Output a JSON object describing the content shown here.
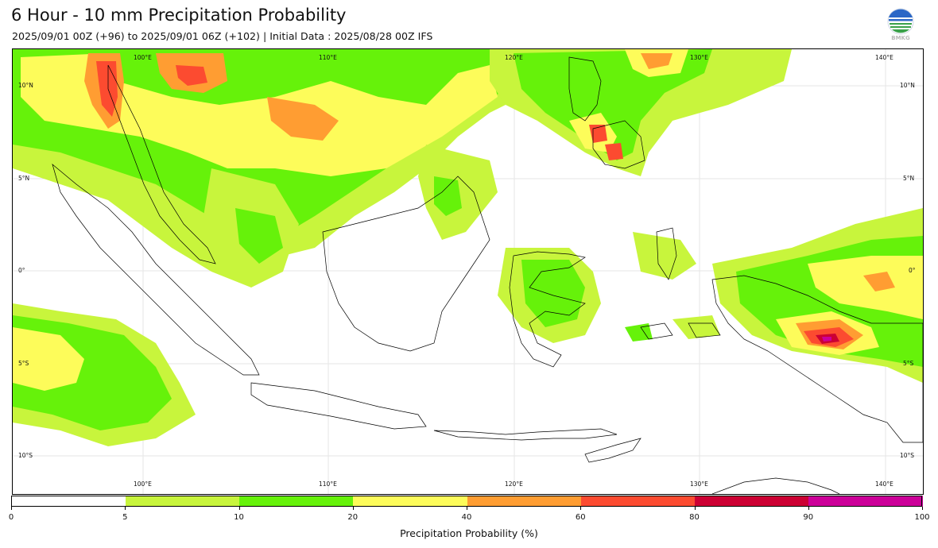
{
  "header": {
    "title": "6 Hour - 10 mm Precipitation Probability",
    "subtitle": "2025/09/01 00Z (+96) to 2025/09/01 06Z (+102) | Initial Data : 2025/08/28 00Z IFS"
  },
  "logo": {
    "text": "BMKG"
  },
  "map": {
    "lon_labels": [
      "100°E",
      "110°E",
      "120°E",
      "130°E",
      "140°E"
    ],
    "lat_labels_left": [
      "10°N",
      "5°N",
      "0°",
      "5°S",
      "10°S"
    ],
    "lat_labels_right": [
      "10°N",
      "5°N",
      "0°",
      "5°S",
      "10°S"
    ]
  },
  "colorbar": {
    "label": "Precipitation Probability (%)",
    "bins": [
      {
        "min": 0,
        "max": 5,
        "color": "#ffffff"
      },
      {
        "min": 5,
        "max": 10,
        "color": "#c8f53c"
      },
      {
        "min": 10,
        "max": 20,
        "color": "#66f20a"
      },
      {
        "min": 20,
        "max": 40,
        "color": "#fdfc5a"
      },
      {
        "min": 40,
        "max": 60,
        "color": "#ff9d32"
      },
      {
        "min": 60,
        "max": 80,
        "color": "#fc4b30"
      },
      {
        "min": 80,
        "max": 90,
        "color": "#cc0033"
      },
      {
        "min": 90,
        "max": 100,
        "color": "#cc0099"
      }
    ],
    "ticks": [
      "0",
      "5",
      "10",
      "20",
      "40",
      "60",
      "80",
      "90",
      "100"
    ]
  }
}
